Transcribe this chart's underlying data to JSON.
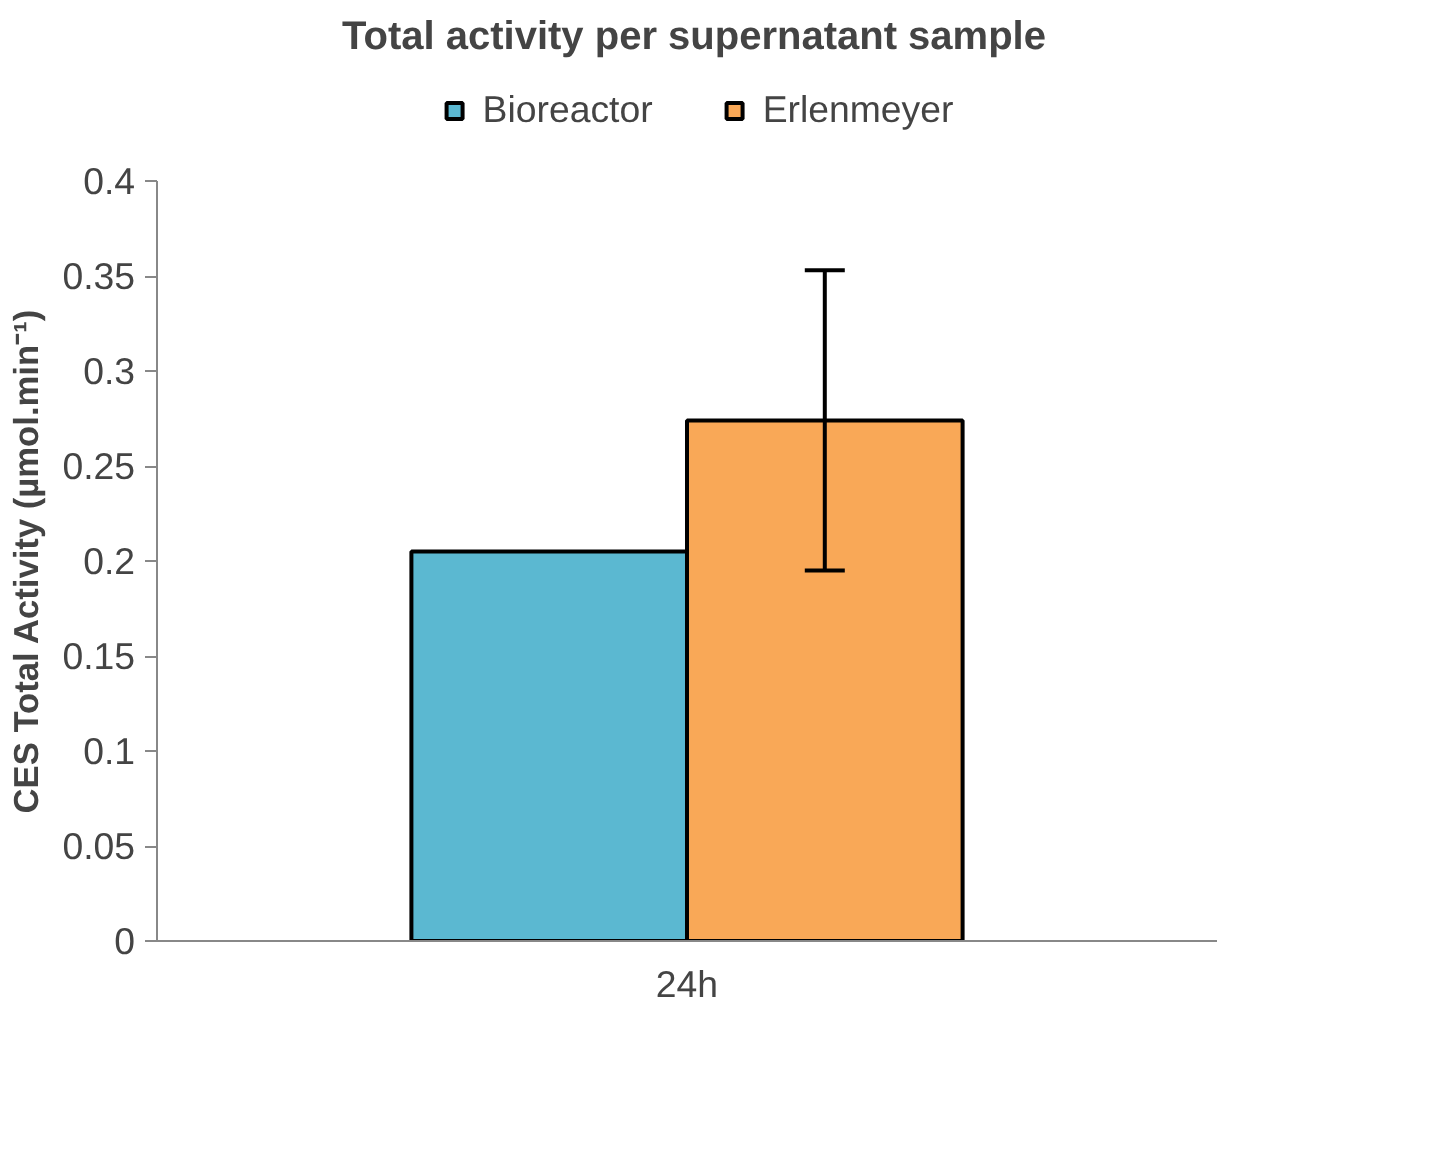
{
  "chart_data": {
    "type": "bar",
    "title": "Total activity per supernatant sample",
    "ylabel": "CES Total Activity (µmol.min⁻¹)",
    "categories": [
      "24h"
    ],
    "series": [
      {
        "name": "Bioreactor",
        "color": "#5bb8d1",
        "values": [
          0.205
        ],
        "errors": [
          null
        ]
      },
      {
        "name": "Erlenmeyer",
        "color": "#f9a857",
        "values": [
          0.274
        ],
        "errors": [
          [
            0.195,
            0.353
          ]
        ]
      }
    ],
    "ylim": [
      0,
      0.4
    ],
    "yticks": [
      0,
      0.05,
      0.1,
      0.15,
      0.2,
      0.25,
      0.3,
      0.35,
      0.4
    ],
    "grid": false,
    "legend": "top"
  }
}
